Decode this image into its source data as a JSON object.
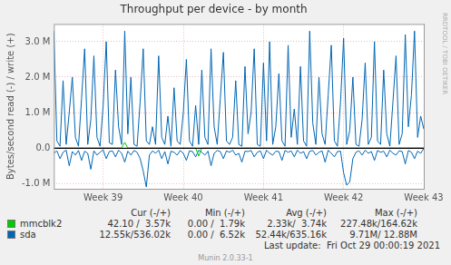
{
  "chart_data": {
    "type": "line",
    "title": "Throughput per device - by month",
    "y_label": "Bytes/second read (-) / write (+)",
    "categories": [
      null,
      null,
      null,
      null,
      null,
      null,
      null,
      null,
      null,
      null,
      null,
      null,
      null,
      null,
      null,
      null,
      "Week 39",
      null,
      null,
      null,
      null,
      null,
      null,
      null,
      null,
      null,
      null,
      null,
      null,
      null,
      null,
      null,
      null,
      null,
      null,
      null,
      null,
      null,
      null,
      null,
      null,
      null,
      "Week 40",
      null,
      null,
      null,
      null,
      null,
      null,
      null,
      null,
      null,
      null,
      null,
      null,
      null,
      null,
      null,
      null,
      null,
      null,
      null,
      null,
      null,
      null,
      null,
      null,
      null,
      "Week 41",
      null,
      null,
      null,
      null,
      null,
      null,
      null,
      null,
      null,
      null,
      null,
      null,
      null,
      null,
      null,
      null,
      null,
      null,
      null,
      null,
      null,
      null,
      null,
      null,
      null,
      "Week 42",
      null,
      null,
      null,
      null,
      null,
      null,
      null,
      null,
      null,
      null,
      null,
      null,
      null,
      null,
      null,
      null,
      null,
      null,
      null,
      null,
      null,
      null,
      null,
      null,
      null,
      "Week 43"
    ],
    "series": [
      {
        "name": "mmcblk2",
        "color": "#00cc00",
        "values": [
          3000,
          2500,
          4000,
          3500,
          2000,
          5000,
          3000,
          2800,
          3600,
          4200,
          3200,
          2600,
          3900,
          3100,
          2400,
          4800,
          3300,
          2900,
          3500,
          4100,
          2800,
          2500,
          4200,
          160000,
          2200,
          5100,
          3000,
          2700,
          3800,
          4000,
          3100,
          2600,
          3700,
          3400,
          2300,
          4700,
          3200,
          2800,
          3600,
          4300,
          2900,
          2400,
          4100,
          3300,
          2100,
          5000,
          3000,
          2900,
          3700,
          4200,
          3300,
          2500,
          3800,
          3200,
          2200,
          4600,
          3400,
          2700,
          3500,
          4000,
          2800,
          2600,
          4000,
          3500,
          2300,
          4900,
          3100,
          2800,
          3600,
          4400,
          3200,
          2500,
          3900,
          3100,
          2000,
          4800,
          3300,
          2900,
          3400,
          4100,
          2900,
          2400,
          4200,
          3600,
          2200,
          5200,
          3000,
          2700,
          3800,
          4000,
          3100,
          2600,
          3700,
          3300,
          2400,
          4700,
          3200,
          2800,
          3500,
          4300,
          3000,
          2500,
          4100,
          3400,
          2100,
          4900,
          3100,
          2900,
          3600,
          4200,
          3300,
          2600,
          3800,
          3200,
          2300,
          4600,
          3400,
          2700,
          3500,
          4000,
          3570
        ],
        "read": [
          -40,
          0,
          -500,
          -1200,
          0,
          -300,
          -40,
          0,
          -800,
          -200,
          0,
          -40,
          -1500,
          0,
          -300,
          -40,
          0,
          -600,
          -100,
          0,
          -40,
          -900,
          0,
          -200,
          -40,
          0,
          -1100,
          -300,
          0,
          -40,
          -500,
          0,
          -40,
          -200,
          0,
          -1300,
          -40,
          0,
          -400,
          -100,
          0,
          -40,
          -700,
          0,
          -200,
          -40,
          0,
          -227480,
          -300,
          0,
          -40,
          -1000,
          0,
          -200,
          -40,
          0,
          -600,
          -100,
          0,
          -40,
          -1200,
          0,
          -300,
          -40,
          0,
          -500,
          -200,
          0,
          -40,
          -800,
          0,
          -100,
          -40,
          0,
          -1400,
          -300,
          0,
          -40,
          -600,
          0,
          -40,
          -200,
          0,
          -900,
          -40,
          0,
          -300,
          -100,
          0,
          -40,
          -700,
          0,
          -200,
          -40,
          0,
          -1100,
          -300,
          0,
          -40,
          -500,
          0,
          -100,
          -40,
          0,
          -800,
          -200,
          0,
          -40,
          -600,
          0,
          -40,
          -300,
          0,
          -1000,
          -40,
          0,
          -200,
          -100,
          0,
          -40,
          -42.1
        ]
      },
      {
        "name": "sda",
        "color": "#0066b3",
        "values": [
          3300000,
          200000,
          50000,
          1900000,
          100000,
          1000000,
          2000000,
          300000,
          50000,
          1400000,
          2800000,
          100000,
          800000,
          2600000,
          300000,
          50000,
          1200000,
          3000000,
          150000,
          100000,
          2200000,
          600000,
          100000,
          3300000,
          400000,
          2000000,
          100000,
          50000,
          1300000,
          2800000,
          200000,
          100000,
          600000,
          100000,
          2600000,
          300000,
          100000,
          900000,
          50000,
          1700000,
          200000,
          100000,
          1000000,
          2500000,
          200000,
          50000,
          1200000,
          100000,
          2200000,
          300000,
          100000,
          2800000,
          600000,
          100000,
          1400000,
          2700000,
          200000,
          100000,
          300000,
          1900000,
          100000,
          50000,
          2300000,
          400000,
          1000000,
          2800000,
          100000,
          50000,
          2400000,
          200000,
          3000000,
          100000,
          600000,
          2100000,
          200000,
          50000,
          2900000,
          300000,
          1100000,
          100000,
          2300000,
          200000,
          50000,
          3300000,
          700000,
          100000,
          2000000,
          400000,
          100000,
          1500000,
          2900000,
          200000,
          50000,
          1300000,
          3100000,
          100000,
          500000,
          2000000,
          100000,
          50000,
          800000,
          2400000,
          100000,
          300000,
          3000000,
          200000,
          100000,
          2200000,
          400000,
          50000,
          1300000,
          2600000,
          100000,
          400000,
          3200000,
          600000,
          1500000,
          3300000,
          300000,
          900000,
          536020
        ],
        "read": [
          -150000,
          -80000,
          -300000,
          -120000,
          -60000,
          -500000,
          -100000,
          -200000,
          -70000,
          -350000,
          -90000,
          -150000,
          -600000,
          -80000,
          -200000,
          -120000,
          -50000,
          -300000,
          -100000,
          -80000,
          -250000,
          -60000,
          -150000,
          -400000,
          -90000,
          -200000,
          -70000,
          -120000,
          -300000,
          -650000,
          -1100000,
          -200000,
          -80000,
          -150000,
          -60000,
          -300000,
          -100000,
          -450000,
          -90000,
          -120000,
          -200000,
          -70000,
          -150000,
          -350000,
          -80000,
          -100000,
          -250000,
          -60000,
          -120000,
          -200000,
          -90000,
          -500000,
          -150000,
          -70000,
          -100000,
          -300000,
          -80000,
          -120000,
          -60000,
          -200000,
          -150000,
          -400000,
          -90000,
          -100000,
          -70000,
          -250000,
          -120000,
          -80000,
          -300000,
          -60000,
          -150000,
          -200000,
          -90000,
          -100000,
          -350000,
          -70000,
          -120000,
          -80000,
          -250000,
          -60000,
          -150000,
          -100000,
          -300000,
          -90000,
          -70000,
          -200000,
          -120000,
          -80000,
          -400000,
          -60000,
          -150000,
          -250000,
          -100000,
          -90000,
          -700000,
          -1050000,
          -950000,
          -300000,
          -120000,
          -80000,
          -200000,
          -60000,
          -150000,
          -100000,
          -350000,
          -70000,
          -120000,
          -90000,
          -250000,
          -60000,
          -150000,
          -200000,
          -80000,
          -100000,
          -450000,
          -70000,
          -120000,
          -300000,
          -90000,
          -150000,
          -12550
        ]
      }
    ],
    "ylim": [
      -1150000,
      3500000
    ],
    "yticks": [
      {
        "value": -1000000,
        "label": "-1.0 M"
      },
      {
        "value": 0,
        "label": "0.0"
      },
      {
        "value": 1000000,
        "label": "1.0 M"
      },
      {
        "value": 2000000,
        "label": "2.0 M"
      },
      {
        "value": 3000000,
        "label": "3.0 M"
      }
    ],
    "grid": true,
    "summary": {
      "columns": [
        "Cur (-/+)",
        "Min (-/+)",
        "Avg (-/+)",
        "Max (-/+)"
      ],
      "rows": [
        {
          "name": "mmcblk2",
          "stats": [
            "42.10 /  3.57k",
            "0.00 /  1.79k",
            "2.33k/  3.74k",
            "227.48k/164.62k"
          ]
        },
        {
          "name": "sda",
          "stats": [
            "12.55k/536.02k",
            "0.00 /  6.52k",
            "52.44k/635.16k",
            "9.71M/ 12.88M"
          ]
        }
      ]
    },
    "last_update": "Last update:  Fri Oct 29 00:00:19 2021",
    "footer": "Munin 2.0.33-1",
    "watermark": "RRDTOOL / TOBI OETIKER"
  }
}
